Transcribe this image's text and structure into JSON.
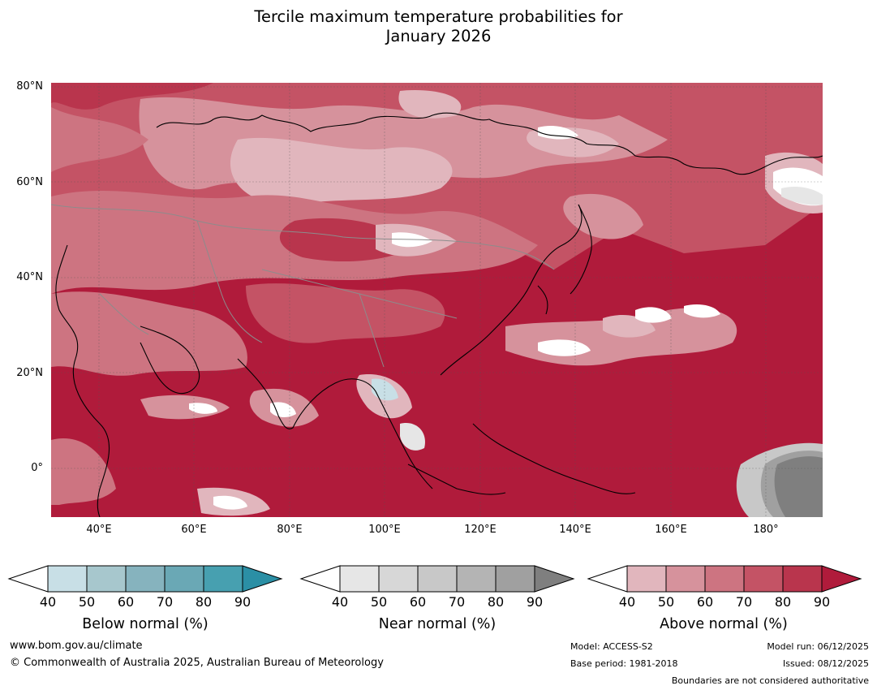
{
  "title": {
    "line1": "Tercile maximum temperature probabilities for",
    "line2": "January 2026"
  },
  "map": {
    "lat_labels": [
      "80°N",
      "60°N",
      "40°N",
      "20°N",
      "0°"
    ],
    "lon_labels": [
      "40°E",
      "60°E",
      "80°E",
      "100°E",
      "120°E",
      "140°E",
      "160°E",
      "180°"
    ]
  },
  "legend": {
    "below": {
      "label": "Below normal (%)",
      "ticks": [
        "40",
        "50",
        "60",
        "70",
        "80",
        "90"
      ],
      "colors": [
        "#ffffff",
        "#c8dfe6",
        "#a7c7cd",
        "#86b3be",
        "#6aa8b5",
        "#47a0b0",
        "#2b8fa5"
      ]
    },
    "near": {
      "label": "Near normal (%)",
      "ticks": [
        "40",
        "50",
        "60",
        "70",
        "80",
        "90"
      ],
      "colors": [
        "#ffffff",
        "#e6e6e6",
        "#d7d7d7",
        "#c8c8c8",
        "#b4b4b4",
        "#a0a0a0",
        "#7f7f7f"
      ]
    },
    "above": {
      "label": "Above normal (%)",
      "ticks": [
        "40",
        "50",
        "60",
        "70",
        "80",
        "90"
      ],
      "colors": [
        "#ffffff",
        "#e1b6bd",
        "#d6929c",
        "#cd7481",
        "#c45365",
        "#b9354d",
        "#b01b3b"
      ]
    }
  },
  "footer": {
    "website": "www.bom.gov.au/climate",
    "copyright": "© Commonwealth of Australia 2025, Australian Bureau of Meteorology",
    "model": "Model: ACCESS-S2",
    "base_period": "Base period: 1981-2018",
    "model_run": "Model run: 06/12/2025",
    "issued": "Issued: 08/12/2025",
    "disclaimer": "Boundaries are not considered authoritative"
  }
}
